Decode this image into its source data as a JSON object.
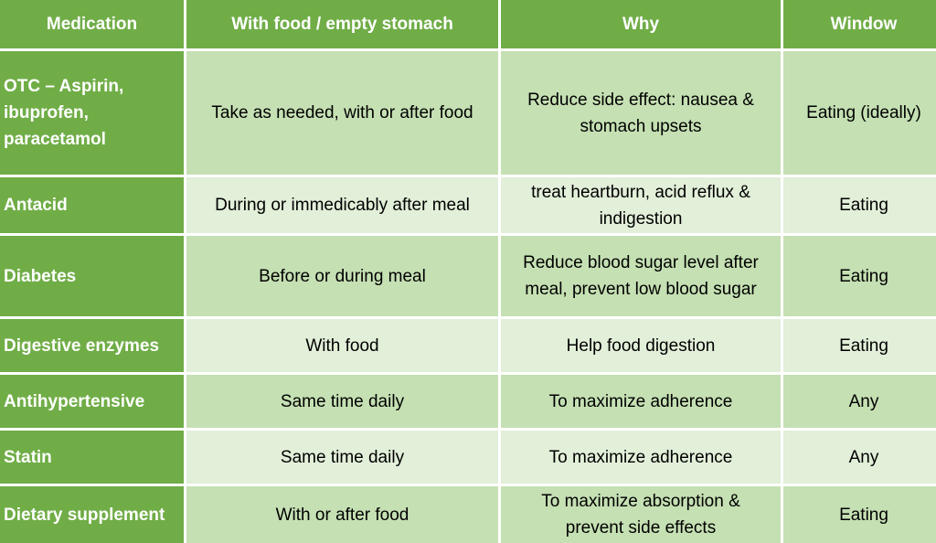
{
  "colors": {
    "header": "#70ad47",
    "row_dark": "#c5e0b3",
    "row_light": "#e2efd9",
    "header_text": "#ffffff"
  },
  "headers": [
    "Medication",
    "With food / empty stomach",
    "Why",
    "Window"
  ],
  "rows": [
    {
      "medication": "OTC – Aspirin,\nibuprofen,\nparacetamol",
      "food": "Take as needed, with or after food",
      "why": "Reduce side effect: nausea &\nstomach upsets",
      "window": "Eating (ideally)"
    },
    {
      "medication": "Antacid",
      "food": "During or immedicably after meal",
      "why": "treat heartburn, acid reflux &\nindigestion",
      "window": "Eating"
    },
    {
      "medication": "Diabetes",
      "food": "Before or during meal",
      "why": "Reduce blood sugar level after\nmeal, prevent low blood sugar",
      "window": "Eating"
    },
    {
      "medication": "Digestive enzymes",
      "food": "With food",
      "why": "Help food digestion",
      "window": "Eating"
    },
    {
      "medication": "Antihypertensive",
      "food": "Same time daily",
      "why": "To maximize adherence",
      "window": "Any"
    },
    {
      "medication": "Statin",
      "food": "Same time daily",
      "why": "To maximize adherence",
      "window": "Any"
    },
    {
      "medication": "Dietary supplement",
      "food": "With or after food",
      "why": "To maximize absorption &\nprevent side effects",
      "window": "Eating"
    }
  ]
}
